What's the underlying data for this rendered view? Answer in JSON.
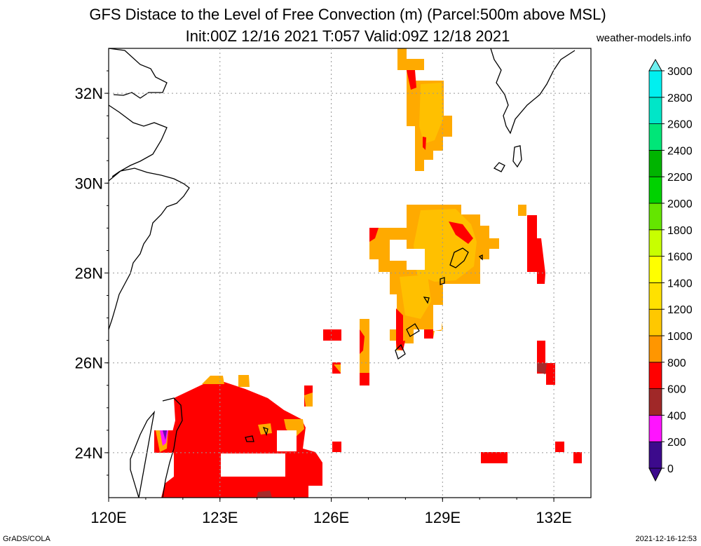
{
  "title_line1": "GFS Distace to the Level of Free Convection (m) (Parcel:500m above MSL)",
  "title_line2": "Init:00Z 12/16 2021 T:057 Valid:09Z 12/18 2021",
  "site": "weather-models.info",
  "footer_left": "GrADS/COLA",
  "footer_right": "2021-12-16-12:53",
  "map": {
    "lon_range": [
      120,
      133
    ],
    "lat_range": [
      23,
      33
    ],
    "lon_ticks": [
      "120E",
      "123E",
      "126E",
      "129E",
      "132E"
    ],
    "lat_ticks": [
      "24N",
      "26N",
      "28N",
      "30N",
      "32N"
    ],
    "grid": true
  },
  "colorbar": {
    "labels": [
      "0",
      "200",
      "400",
      "600",
      "800",
      "1000",
      "1200",
      "1400",
      "1600",
      "1800",
      "2000",
      "2200",
      "2400",
      "2600",
      "2800",
      "3000"
    ],
    "colors": [
      "#3c0a8c",
      "#ff14ff",
      "#a02828",
      "#ff0000",
      "#ff9600",
      "#ffc800",
      "#ffe100",
      "#ffff00",
      "#c8ff00",
      "#64e600",
      "#00d200",
      "#00b400",
      "#00e678",
      "#00e6c8",
      "#00f0f0"
    ],
    "max_color": "#6ef0f0",
    "min_color": "#3c0a8c"
  },
  "colors": {
    "red": "#ff0000",
    "orange": "#ffaa00",
    "amber": "#ffc000",
    "brown": "#a52a2a",
    "magenta": "#ff14ff",
    "purple": "#6a0dad"
  }
}
